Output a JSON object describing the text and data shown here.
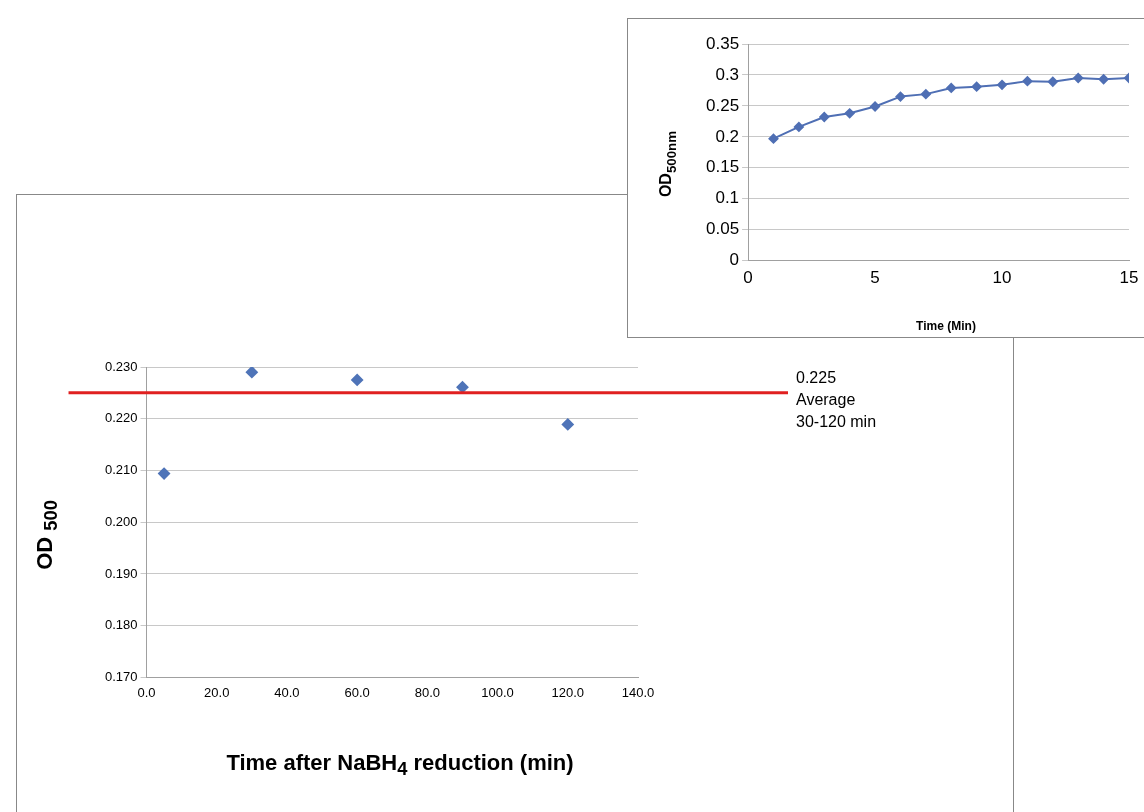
{
  "chart_data": [
    {
      "type": "scatter",
      "xlabel": "Time after NaBH$_{4}$ reduction (min)",
      "ylabel": "OD $_{500}$",
      "x": [
        5,
        30,
        60,
        90,
        120
      ],
      "series": [
        {
          "color": "#4f74b8",
          "values": [
            0.2094,
            0.229,
            0.2275,
            0.2261,
            0.2189
          ]
        }
      ],
      "xlim": [
        0,
        140
      ],
      "xticks": [
        {
          "value": 0,
          "label": "0.0"
        },
        {
          "value": 20,
          "label": "20.0"
        },
        {
          "value": 40,
          "label": "40.0"
        },
        {
          "value": 60,
          "label": "60.0"
        },
        {
          "value": 80,
          "label": "80.0"
        },
        {
          "value": 100,
          "label": "100.0"
        },
        {
          "value": 120,
          "label": "120.0"
        },
        {
          "value": 140,
          "label": "140.0"
        }
      ],
      "ylim": [
        0.17,
        0.23
      ],
      "yticks": [
        {
          "value": 0.17,
          "label": "0.170"
        },
        {
          "value": 0.18,
          "label": "0.180"
        },
        {
          "value": 0.19,
          "label": "0.190"
        },
        {
          "value": 0.2,
          "label": "0.200"
        },
        {
          "value": 0.21,
          "label": "0.210"
        },
        {
          "value": 0.22,
          "label": "0.220"
        },
        {
          "value": 0.23,
          "label": "0.230"
        }
      ],
      "ref_lines": [
        {
          "axis": "y",
          "value": 0.225,
          "label": "0.225\nAverage\n30-120 min",
          "color": "#e02020"
        }
      ],
      "grid": "y",
      "legend": false,
      "marker": "diamond"
    },
    {
      "type": "line",
      "xlabel": "Time (Min)",
      "ylabel": "OD$_{500nm}$",
      "x": [
        1,
        2,
        3,
        4,
        5,
        6,
        7,
        8,
        9,
        10,
        11,
        12,
        13,
        14,
        15
      ],
      "series": [
        {
          "color": "#4f6fb4",
          "values": [
            0.197,
            0.216,
            0.232,
            0.238,
            0.249,
            0.265,
            0.269,
            0.279,
            0.281,
            0.284,
            0.29,
            0.289,
            0.295,
            0.293,
            0.295
          ]
        }
      ],
      "xlim": [
        0,
        15
      ],
      "xticks": [
        0,
        5,
        10,
        15
      ],
      "ylim": [
        0,
        0.35
      ],
      "yticks": [
        0,
        0.05,
        0.1,
        0.15,
        0.2,
        0.25,
        0.3,
        0.35
      ],
      "grid": "y",
      "legend": false,
      "marker": "diamond",
      "line_style": "solid"
    }
  ]
}
